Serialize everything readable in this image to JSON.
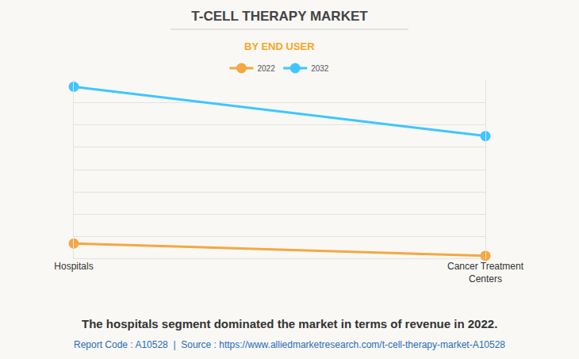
{
  "chart_data": {
    "type": "line",
    "title": "T-CELL THERAPY MARKET",
    "subtitle": "BY END USER",
    "categories": [
      "Hospitals",
      "Cancer Treatment Centers"
    ],
    "series": [
      {
        "name": "2022",
        "color": "#f5a742",
        "values": [
          0.7,
          0.15
        ]
      },
      {
        "name": "2032",
        "color": "#3ec6ff",
        "values": [
          7.7,
          5.5
        ]
      }
    ],
    "ylim": [
      0,
      8
    ],
    "yticks": [
      0,
      1,
      2,
      3,
      4,
      5,
      6,
      7,
      8
    ],
    "grid": true,
    "tick_labels": "x",
    "legend": "top",
    "marker": "circle",
    "annotations": [
      "The hospitals segment dominated the market in terms of revenue in 2022.",
      "Report Code : A10528  |  Source : https://www.alliedmarketresearch.com/t-cell-therapy-market-A10528"
    ]
  }
}
